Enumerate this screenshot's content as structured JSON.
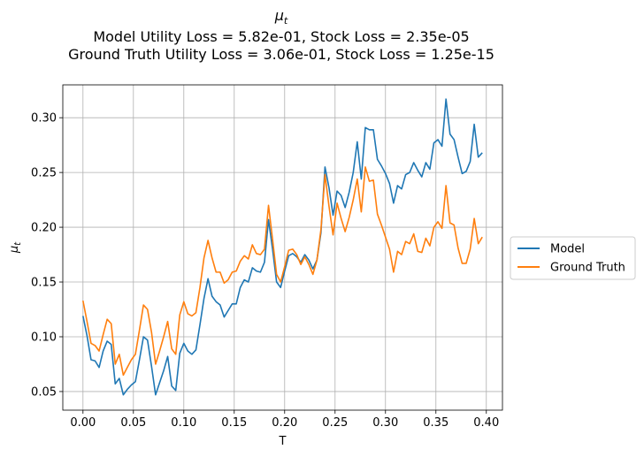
{
  "chart_data": {
    "type": "line",
    "title_main": "μ",
    "title_main_sub": "t",
    "title_line2": "Model Utility Loss = 5.82e-01, Stock Loss = 2.35e-05",
    "title_line3": "Ground Truth Utility Loss = 3.06e-01, Stock Loss = 1.25e-15",
    "xlabel": "T",
    "ylabel_main": "μ",
    "ylabel_sub": "t",
    "xlim": [
      -0.02,
      0.416
    ],
    "ylim": [
      0.033,
      0.33
    ],
    "xticks": [
      0.0,
      0.05,
      0.1,
      0.15,
      0.2,
      0.25,
      0.3,
      0.35,
      0.4
    ],
    "xtick_labels": [
      "0.00",
      "0.05",
      "0.10",
      "0.15",
      "0.20",
      "0.25",
      "0.30",
      "0.35",
      "0.40"
    ],
    "yticks": [
      0.05,
      0.1,
      0.15,
      0.2,
      0.25,
      0.3
    ],
    "ytick_labels": [
      "0.05",
      "0.10",
      "0.15",
      "0.20",
      "0.25",
      "0.30"
    ],
    "grid": true,
    "legend_position": "right-center outside",
    "x": [
      0.0,
      0.004,
      0.008,
      0.012,
      0.016,
      0.02,
      0.024,
      0.028,
      0.032,
      0.036,
      0.04,
      0.044,
      0.048,
      0.052,
      0.056,
      0.06,
      0.064,
      0.068,
      0.072,
      0.076,
      0.08,
      0.084,
      0.088,
      0.092,
      0.096,
      0.1,
      0.104,
      0.108,
      0.112,
      0.116,
      0.12,
      0.124,
      0.128,
      0.132,
      0.136,
      0.14,
      0.144,
      0.148,
      0.152,
      0.156,
      0.16,
      0.164,
      0.168,
      0.172,
      0.176,
      0.18,
      0.184,
      0.188,
      0.192,
      0.196,
      0.2,
      0.204,
      0.208,
      0.212,
      0.216,
      0.22,
      0.224,
      0.228,
      0.232,
      0.236,
      0.24,
      0.244,
      0.248,
      0.252,
      0.256,
      0.26,
      0.264,
      0.268,
      0.272,
      0.276,
      0.28,
      0.284,
      0.288,
      0.292,
      0.296,
      0.3,
      0.304,
      0.308,
      0.312,
      0.316,
      0.32,
      0.324,
      0.328,
      0.332,
      0.336,
      0.34,
      0.344,
      0.348,
      0.352,
      0.356,
      0.36,
      0.364,
      0.368,
      0.372,
      0.376,
      0.38,
      0.384,
      0.388,
      0.392,
      0.396
    ],
    "series": [
      {
        "name": "Model",
        "color": "#1f77b4",
        "values": [
          0.119,
          0.101,
          0.079,
          0.078,
          0.072,
          0.087,
          0.096,
          0.093,
          0.057,
          0.062,
          0.047,
          0.052,
          0.056,
          0.059,
          0.079,
          0.1,
          0.097,
          0.073,
          0.047,
          0.058,
          0.069,
          0.082,
          0.055,
          0.051,
          0.085,
          0.094,
          0.087,
          0.084,
          0.088,
          0.111,
          0.135,
          0.153,
          0.137,
          0.132,
          0.129,
          0.118,
          0.124,
          0.13,
          0.13,
          0.145,
          0.152,
          0.15,
          0.163,
          0.16,
          0.159,
          0.168,
          0.207,
          0.18,
          0.15,
          0.145,
          0.16,
          0.174,
          0.176,
          0.173,
          0.168,
          0.175,
          0.17,
          0.162,
          0.17,
          0.195,
          0.255,
          0.236,
          0.211,
          0.233,
          0.229,
          0.218,
          0.232,
          0.25,
          0.278,
          0.244,
          0.291,
          0.289,
          0.289,
          0.262,
          0.256,
          0.249,
          0.24,
          0.222,
          0.238,
          0.235,
          0.248,
          0.25,
          0.259,
          0.252,
          0.246,
          0.259,
          0.253,
          0.277,
          0.28,
          0.274,
          0.317,
          0.285,
          0.28,
          0.264,
          0.249,
          0.251,
          0.26,
          0.294,
          0.264,
          0.268
        ]
      },
      {
        "name": "Ground Truth",
        "color": "#ff7f0e",
        "values": [
          0.133,
          0.114,
          0.094,
          0.092,
          0.087,
          0.102,
          0.116,
          0.112,
          0.075,
          0.084,
          0.065,
          0.072,
          0.079,
          0.084,
          0.106,
          0.129,
          0.125,
          0.104,
          0.075,
          0.087,
          0.1,
          0.114,
          0.089,
          0.084,
          0.12,
          0.132,
          0.121,
          0.119,
          0.122,
          0.145,
          0.172,
          0.188,
          0.172,
          0.159,
          0.159,
          0.149,
          0.152,
          0.159,
          0.16,
          0.169,
          0.174,
          0.171,
          0.184,
          0.176,
          0.175,
          0.18,
          0.22,
          0.189,
          0.157,
          0.15,
          0.164,
          0.179,
          0.18,
          0.175,
          0.166,
          0.173,
          0.166,
          0.157,
          0.17,
          0.198,
          0.248,
          0.219,
          0.193,
          0.222,
          0.208,
          0.196,
          0.209,
          0.225,
          0.244,
          0.214,
          0.255,
          0.242,
          0.243,
          0.212,
          0.202,
          0.191,
          0.18,
          0.159,
          0.178,
          0.175,
          0.187,
          0.185,
          0.194,
          0.178,
          0.177,
          0.19,
          0.183,
          0.2,
          0.205,
          0.199,
          0.238,
          0.204,
          0.202,
          0.181,
          0.167,
          0.167,
          0.18,
          0.208,
          0.185,
          0.191
        ]
      }
    ]
  }
}
